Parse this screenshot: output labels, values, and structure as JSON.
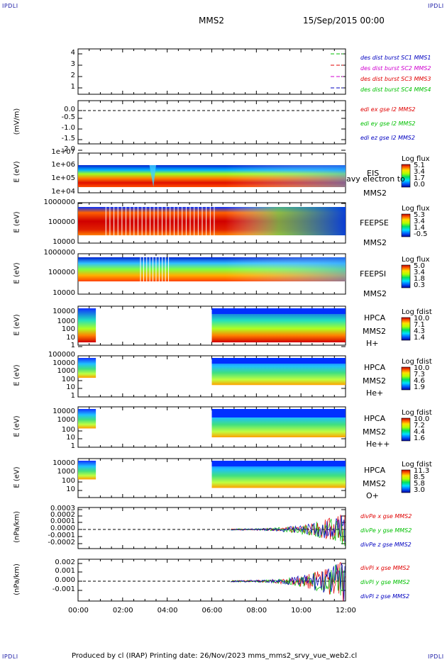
{
  "corners": {
    "tl": "IPDLI",
    "tr": "IPDLI",
    "bl": "IPDLI",
    "br": "IPDLI"
  },
  "header": {
    "spacecraft": "MMS2",
    "date": "15/Sep/2015 00:00"
  },
  "footer": {
    "text": "Produced by cl (IRAP)   Printing date: 26/Nov/2023   mms_mms2_srvy_vue_web2.cl"
  },
  "xaxis": {
    "ticks": [
      "00:00",
      "02:00",
      "04:00",
      "06:00",
      "08:00",
      "10:00",
      "12:00"
    ]
  },
  "colors": {
    "red": "#e00000",
    "green": "#00c000",
    "blue": "#0000c0",
    "magenta": "#d000d0"
  },
  "panels": [
    {
      "id": "p1",
      "ylabel": "",
      "yticks": [
        "4",
        "3",
        "2",
        "1"
      ],
      "legend": [
        {
          "text": "des dist burst SC1 MMS1",
          "color": "#0000c0"
        },
        {
          "text": "des dist burst SC2 MMS2",
          "color": "#d000d0"
        },
        {
          "text": "des dist burst SC3 MMS3",
          "color": "#e00000"
        },
        {
          "text": "des dist burst SC4 MMS4",
          "color": "#00c000"
        }
      ]
    },
    {
      "id": "p2",
      "ylabel": "(mV/m)",
      "yticks": [
        "0.0",
        "-0.5",
        "-1.0",
        "-1.5",
        "-2.0"
      ],
      "legend": [
        {
          "text": "edi ex gse l2 MMS2",
          "color": "#e00000"
        },
        {
          "text": "edi ey gse l2 MMS2",
          "color": "#00c000"
        },
        {
          "text": "edi ez gse l2 MMS2",
          "color": "#0000c0"
        }
      ]
    },
    {
      "id": "p3",
      "ylabel": "E (eV)",
      "yticks": [
        "1e+07",
        "1e+06",
        "1e+05",
        "1e+04"
      ],
      "side": [
        "EIS",
        "avy electron to",
        "MMS2"
      ],
      "cbtitle": "Log flux",
      "cbvals": [
        "5.1",
        "3.4",
        "1.7",
        "0.0"
      ]
    },
    {
      "id": "p4",
      "ylabel": "E (eV)",
      "yticks": [
        "1000000",
        "100000",
        "10000"
      ],
      "side": [
        "FEEPSE",
        "MMS2"
      ],
      "cbtitle": "Log flux",
      "cbvals": [
        "5.3",
        "3.4",
        "1.4",
        "-0.5"
      ]
    },
    {
      "id": "p5",
      "ylabel": "E (eV)",
      "yticks": [
        "1000000",
        "100000",
        "10000"
      ],
      "side": [
        "FEEPSI",
        "MMS2"
      ],
      "cbtitle": "Log flux",
      "cbvals": [
        "5.0",
        "3.4",
        "1.8",
        "0.3"
      ]
    },
    {
      "id": "p6",
      "ylabel": "E (eV)",
      "yticks": [
        "10000",
        "1000",
        "100",
        "10",
        "1"
      ],
      "side": [
        "HPCA",
        "MMS2",
        "H+"
      ],
      "cbtitle": "Log fdist",
      "cbvals": [
        "10.0",
        "7.1",
        "4.3",
        "1.4"
      ]
    },
    {
      "id": "p7",
      "ylabel": "E (eV)",
      "yticks": [
        "100000",
        "10000",
        "1000",
        "100",
        "10",
        "1"
      ],
      "side": [
        "HPCA",
        "MMS2",
        "He+"
      ],
      "cbtitle": "Log fdist",
      "cbvals": [
        "10.0",
        "7.3",
        "4.6",
        "1.9"
      ]
    },
    {
      "id": "p8",
      "ylabel": "E (eV)",
      "yticks": [
        "10000",
        "1000",
        "100",
        "10",
        "1"
      ],
      "side": [
        "HPCA",
        "MMS2",
        "He++"
      ],
      "cbtitle": "Log fdist",
      "cbvals": [
        "10.0",
        "7.2",
        "4.4",
        "1.6"
      ]
    },
    {
      "id": "p9",
      "ylabel": "E (eV)",
      "yticks": [
        "10000",
        "1000",
        "100",
        "10"
      ],
      "side": [
        "HPCA",
        "MMS2",
        "O+"
      ],
      "cbtitle": "Log fdist",
      "cbvals": [
        "11.3",
        "8.5",
        "5.8",
        "3.0"
      ]
    },
    {
      "id": "p10",
      "ylabel": "(nPa/km)",
      "yticks": [
        "0.0003",
        "0.0002",
        "0.0001",
        "0.0000",
        "-0.0001",
        "-0.0002"
      ],
      "legend": [
        {
          "text": "divPe x gse MMS2",
          "color": "#e00000"
        },
        {
          "text": "divPe y gse MMS2",
          "color": "#00c000"
        },
        {
          "text": "divPe z gse MMS2",
          "color": "#0000c0"
        }
      ]
    },
    {
      "id": "p11",
      "ylabel": "(nPa/km)",
      "yticks": [
        "0.002",
        "0.001",
        "0.000",
        "-0.001"
      ],
      "legend": [
        {
          "text": "divPi x gse MMS2",
          "color": "#e00000"
        },
        {
          "text": "divPi y gse MMS2",
          "color": "#00c000"
        },
        {
          "text": "divPi z gse MMS2",
          "color": "#0000c0"
        }
      ]
    }
  ],
  "chart_data": [
    {
      "type": "scatter",
      "panel": "des dist burst",
      "x_range": [
        "00:00",
        "12:00"
      ],
      "ylim": [
        0.5,
        4.5
      ],
      "series": [
        {
          "name": "des dist burst SC1 MMS1",
          "y": 1
        },
        {
          "name": "des dist burst SC2 MMS2",
          "y": 2
        },
        {
          "name": "des dist burst SC3 MMS3",
          "y": 3
        },
        {
          "name": "des dist burst SC4 MMS4",
          "y": 4
        }
      ]
    },
    {
      "type": "line",
      "panel": "edi e gse l2",
      "ylabel": "(mV/m)",
      "ylim": [
        -2.2,
        0.2
      ],
      "reference_line": 0.0
    },
    {
      "type": "heatmap",
      "panel": "EIS",
      "ylabel": "E (eV)",
      "yscale": "log",
      "ylim": [
        10000,
        10000000
      ],
      "colorbar": "Log flux",
      "crange": [
        0.0,
        5.1
      ]
    },
    {
      "type": "heatmap",
      "panel": "FEEPSE",
      "ylabel": "E (eV)",
      "yscale": "log",
      "ylim": [
        10000,
        1000000
      ],
      "colorbar": "Log flux",
      "crange": [
        -0.5,
        5.3
      ]
    },
    {
      "type": "heatmap",
      "panel": "FEEPSI",
      "ylabel": "E (eV)",
      "yscale": "log",
      "ylim": [
        10000,
        1000000
      ],
      "colorbar": "Log flux",
      "crange": [
        0.3,
        5.0
      ]
    },
    {
      "type": "heatmap",
      "panel": "HPCA H+",
      "ylabel": "E (eV)",
      "yscale": "log",
      "ylim": [
        1,
        10000
      ],
      "colorbar": "Log fdist",
      "crange": [
        1.4,
        10.0
      ],
      "data_intervals": [
        [
          "00:00",
          "00:50"
        ],
        [
          "06:00",
          "12:00"
        ]
      ]
    },
    {
      "type": "heatmap",
      "panel": "HPCA He+",
      "ylabel": "E (eV)",
      "yscale": "log",
      "ylim": [
        1,
        100000
      ],
      "colorbar": "Log fdist",
      "crange": [
        1.9,
        10.0
      ],
      "data_intervals": [
        [
          "00:00",
          "00:50"
        ],
        [
          "06:00",
          "12:00"
        ]
      ]
    },
    {
      "type": "heatmap",
      "panel": "HPCA He++",
      "ylabel": "E (eV)",
      "yscale": "log",
      "ylim": [
        1,
        10000
      ],
      "colorbar": "Log fdist",
      "crange": [
        1.6,
        10.0
      ],
      "data_intervals": [
        [
          "00:00",
          "00:50"
        ],
        [
          "06:00",
          "12:00"
        ]
      ]
    },
    {
      "type": "heatmap",
      "panel": "HPCA O+",
      "ylabel": "E (eV)",
      "yscale": "log",
      "ylim": [
        1,
        10000
      ],
      "colorbar": "Log fdist",
      "crange": [
        3.0,
        11.3
      ],
      "data_intervals": [
        [
          "00:00",
          "00:50"
        ],
        [
          "06:00",
          "12:00"
        ]
      ]
    },
    {
      "type": "line",
      "panel": "divPe gse",
      "ylabel": "(nPa/km)",
      "ylim": [
        -0.00025,
        0.0003
      ],
      "reference_line": 0.0,
      "data_start": "06:50"
    },
    {
      "type": "line",
      "panel": "divPi gse",
      "ylabel": "(nPa/km)",
      "ylim": [
        -0.0015,
        0.0022
      ],
      "reference_line": 0.0,
      "data_start": "06:50"
    }
  ]
}
